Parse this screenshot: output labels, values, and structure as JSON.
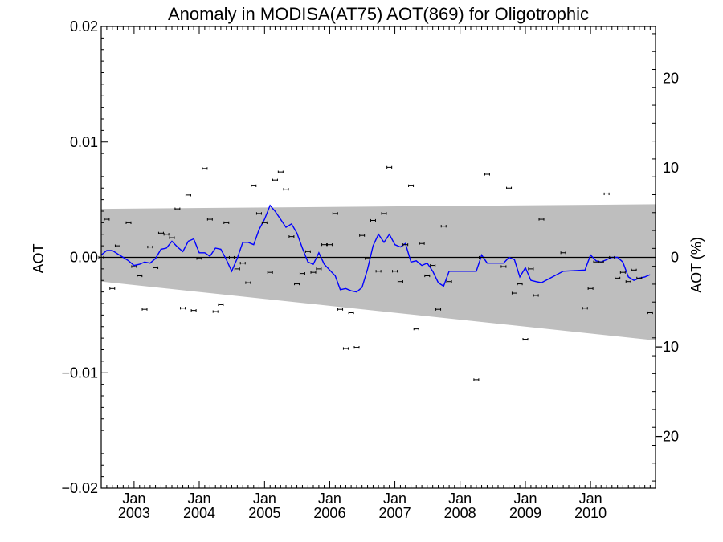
{
  "chart_data": {
    "type": "scatter",
    "title": "Anomaly in MODISA(AT75) AOT(869) for Oligotrophic",
    "ylabel": "AOT",
    "ylabel_right": "AOT (%)",
    "ylim": [
      -0.02,
      0.02
    ],
    "ylim_right_percent": [
      -25.8,
      25.8
    ],
    "xlim": [
      "2002-07-01",
      "2010-12-31"
    ],
    "grid": false,
    "y_ticks": [
      "0.02",
      "0.01",
      "0.00",
      "−0.01",
      "−0.02"
    ],
    "y_tick_values": [
      0.02,
      0.01,
      0.0,
      -0.01,
      -0.02
    ],
    "y_right_ticks": [
      "20",
      "10",
      "0",
      "−10",
      "−20"
    ],
    "y_right_tick_values": [
      20,
      10,
      0,
      -10,
      -20
    ],
    "x_ticks": [
      {
        "month": "Jan",
        "year": "2003",
        "date": "2003-01-01"
      },
      {
        "month": "Jan",
        "year": "2004",
        "date": "2004-01-01"
      },
      {
        "month": "Jan",
        "year": "2005",
        "date": "2005-01-01"
      },
      {
        "month": "Jan",
        "year": "2006",
        "date": "2006-01-01"
      },
      {
        "month": "Jan",
        "year": "2007",
        "date": "2007-01-01"
      },
      {
        "month": "Jan",
        "year": "2008",
        "date": "2008-01-01"
      },
      {
        "month": "Jan",
        "year": "2009",
        "date": "2009-01-01"
      },
      {
        "month": "Jan",
        "year": "2010",
        "date": "2010-01-01"
      }
    ],
    "band": {
      "color": "#bebebe",
      "upper": [
        [
          "2002-07-01",
          0.0042
        ],
        [
          "2010-12-31",
          0.0046
        ]
      ],
      "lower": [
        [
          "2002-07-01",
          -0.0021
        ],
        [
          "2010-12-31",
          -0.0072
        ]
      ]
    },
    "zero_line": 0,
    "points": [
      {
        "x": "2002-07-01",
        "y": 0.0
      },
      {
        "x": "2002-08-01",
        "y": 0.0033
      },
      {
        "x": "2002-09-01",
        "y": -0.0027
      },
      {
        "x": "2002-10-01",
        "y": 0.001
      },
      {
        "x": "2002-12-01",
        "y": 0.003
      },
      {
        "x": "2003-01-01",
        "y": -0.0008
      },
      {
        "x": "2003-02-01",
        "y": -0.0016
      },
      {
        "x": "2003-03-01",
        "y": -0.0045
      },
      {
        "x": "2003-04-01",
        "y": 0.0009
      },
      {
        "x": "2003-05-01",
        "y": -0.0009
      },
      {
        "x": "2003-06-01",
        "y": 0.0021
      },
      {
        "x": "2003-07-01",
        "y": 0.002
      },
      {
        "x": "2003-08-01",
        "y": 0.0017
      },
      {
        "x": "2003-09-01",
        "y": 0.0042
      },
      {
        "x": "2003-10-01",
        "y": -0.0044
      },
      {
        "x": "2003-11-01",
        "y": 0.0054
      },
      {
        "x": "2003-12-01",
        "y": -0.0046
      },
      {
        "x": "2004-01-01",
        "y": -0.0001
      },
      {
        "x": "2004-02-01",
        "y": 0.0077
      },
      {
        "x": "2004-03-01",
        "y": 0.0033
      },
      {
        "x": "2004-04-01",
        "y": -0.0047
      },
      {
        "x": "2004-05-01",
        "y": -0.0041
      },
      {
        "x": "2004-06-01",
        "y": 0.003
      },
      {
        "x": "2004-07-01",
        "y": 0.0
      },
      {
        "x": "2004-08-01",
        "y": -0.001
      },
      {
        "x": "2004-09-01",
        "y": -0.0005
      },
      {
        "x": "2004-10-01",
        "y": -0.0022
      },
      {
        "x": "2004-11-01",
        "y": 0.0062
      },
      {
        "x": "2004-12-01",
        "y": 0.0038
      },
      {
        "x": "2005-01-01",
        "y": 0.003
      },
      {
        "x": "2005-02-01",
        "y": -0.0013
      },
      {
        "x": "2005-03-01",
        "y": 0.0067
      },
      {
        "x": "2005-04-01",
        "y": 0.0074
      },
      {
        "x": "2005-05-01",
        "y": 0.0059
      },
      {
        "x": "2005-06-01",
        "y": 0.0018
      },
      {
        "x": "2005-07-01",
        "y": -0.0023
      },
      {
        "x": "2005-08-01",
        "y": -0.0014
      },
      {
        "x": "2005-09-01",
        "y": 0.0005
      },
      {
        "x": "2005-10-01",
        "y": -0.0013
      },
      {
        "x": "2005-11-01",
        "y": -0.001
      },
      {
        "x": "2005-12-01",
        "y": 0.0011
      },
      {
        "x": "2006-01-01",
        "y": 0.0011
      },
      {
        "x": "2006-02-01",
        "y": 0.0038
      },
      {
        "x": "2006-03-01",
        "y": -0.0045
      },
      {
        "x": "2006-04-01",
        "y": -0.0079
      },
      {
        "x": "2006-05-01",
        "y": -0.0048
      },
      {
        "x": "2006-06-01",
        "y": -0.0078
      },
      {
        "x": "2006-07-01",
        "y": 0.0019
      },
      {
        "x": "2006-08-01",
        "y": -0.0001
      },
      {
        "x": "2006-09-01",
        "y": 0.0032
      },
      {
        "x": "2006-10-01",
        "y": -0.0012
      },
      {
        "x": "2006-11-01",
        "y": 0.0038
      },
      {
        "x": "2006-12-01",
        "y": 0.0078
      },
      {
        "x": "2007-01-01",
        "y": -0.0012
      },
      {
        "x": "2007-02-01",
        "y": -0.0021
      },
      {
        "x": "2007-03-01",
        "y": 0.0011
      },
      {
        "x": "2007-04-01",
        "y": 0.0062
      },
      {
        "x": "2007-05-01",
        "y": -0.0062
      },
      {
        "x": "2007-06-01",
        "y": 0.0012
      },
      {
        "x": "2007-07-01",
        "y": -0.0016
      },
      {
        "x": "2007-08-01",
        "y": -0.0007
      },
      {
        "x": "2007-09-01",
        "y": -0.0045
      },
      {
        "x": "2007-10-01",
        "y": 0.0027
      },
      {
        "x": "2007-11-01",
        "y": -0.0021
      },
      {
        "x": "2008-04-01",
        "y": -0.0106
      },
      {
        "x": "2008-05-01",
        "y": 0.0
      },
      {
        "x": "2008-06-01",
        "y": 0.0072
      },
      {
        "x": "2008-09-01",
        "y": -0.0008
      },
      {
        "x": "2008-10-01",
        "y": 0.006
      },
      {
        "x": "2008-11-01",
        "y": -0.0031
      },
      {
        "x": "2008-12-01",
        "y": -0.0023
      },
      {
        "x": "2009-01-01",
        "y": -0.0071
      },
      {
        "x": "2009-02-01",
        "y": -0.001
      },
      {
        "x": "2009-03-01",
        "y": -0.0033
      },
      {
        "x": "2009-04-01",
        "y": 0.0033
      },
      {
        "x": "2009-08-01",
        "y": 0.0004
      },
      {
        "x": "2009-12-01",
        "y": -0.0044
      },
      {
        "x": "2010-01-01",
        "y": -0.0027
      },
      {
        "x": "2010-02-01",
        "y": -0.0004
      },
      {
        "x": "2010-03-01",
        "y": -0.0004
      },
      {
        "x": "2010-04-01",
        "y": 0.0055
      },
      {
        "x": "2010-05-01",
        "y": 0.0
      },
      {
        "x": "2010-06-01",
        "y": -0.0018
      },
      {
        "x": "2010-07-01",
        "y": -0.0013
      },
      {
        "x": "2010-08-01",
        "y": -0.0021
      },
      {
        "x": "2010-09-01",
        "y": -0.0011
      },
      {
        "x": "2010-10-01",
        "y": -0.0018
      },
      {
        "x": "2010-12-01",
        "y": -0.0048
      }
    ],
    "smoothed_line": {
      "color": "#0000ff",
      "points": [
        [
          "2002-07-01",
          0.0002
        ],
        [
          "2002-08-01",
          0.0006
        ],
        [
          "2002-09-01",
          0.0006
        ],
        [
          "2002-10-01",
          0.0003
        ],
        [
          "2002-11-01",
          0.0
        ],
        [
          "2002-12-01",
          -0.0003
        ],
        [
          "2003-01-01",
          -0.0007
        ],
        [
          "2003-02-01",
          -0.0006
        ],
        [
          "2003-03-01",
          -0.0004
        ],
        [
          "2003-04-01",
          -0.0005
        ],
        [
          "2003-05-01",
          -0.0001
        ],
        [
          "2003-06-01",
          0.0007
        ],
        [
          "2003-07-01",
          0.0008
        ],
        [
          "2003-08-01",
          0.0014
        ],
        [
          "2003-09-01",
          0.0009
        ],
        [
          "2003-10-01",
          0.0005
        ],
        [
          "2003-11-01",
          0.0014
        ],
        [
          "2003-12-01",
          0.0016
        ],
        [
          "2004-01-01",
          0.0004
        ],
        [
          "2004-02-01",
          0.0004
        ],
        [
          "2004-03-01",
          0.0001
        ],
        [
          "2004-04-01",
          0.0008
        ],
        [
          "2004-05-01",
          0.0007
        ],
        [
          "2004-06-01",
          -0.0002
        ],
        [
          "2004-07-01",
          -0.0012
        ],
        [
          "2004-08-01",
          -0.0001
        ],
        [
          "2004-09-01",
          0.0013
        ],
        [
          "2004-10-01",
          0.0013
        ],
        [
          "2004-11-01",
          0.0011
        ],
        [
          "2004-12-01",
          0.0024
        ],
        [
          "2005-01-01",
          0.0033
        ],
        [
          "2005-02-01",
          0.0045
        ],
        [
          "2005-03-01",
          0.004
        ],
        [
          "2005-04-01",
          0.0033
        ],
        [
          "2005-05-01",
          0.0026
        ],
        [
          "2005-06-01",
          0.0029
        ],
        [
          "2005-07-01",
          0.0021
        ],
        [
          "2005-08-01",
          0.0008
        ],
        [
          "2005-09-01",
          -0.0004
        ],
        [
          "2005-10-01",
          -0.0006
        ],
        [
          "2005-11-01",
          0.0004
        ],
        [
          "2005-12-01",
          -0.0006
        ],
        [
          "2006-01-01",
          -0.0011
        ],
        [
          "2006-02-01",
          -0.0016
        ],
        [
          "2006-03-01",
          -0.0028
        ],
        [
          "2006-04-01",
          -0.0027
        ],
        [
          "2006-05-01",
          -0.0029
        ],
        [
          "2006-06-01",
          -0.003
        ],
        [
          "2006-07-01",
          -0.0026
        ],
        [
          "2006-08-01",
          -0.001
        ],
        [
          "2006-09-01",
          0.001
        ],
        [
          "2006-10-01",
          0.002
        ],
        [
          "2006-11-01",
          0.0013
        ],
        [
          "2006-12-01",
          0.002
        ],
        [
          "2007-01-01",
          0.0011
        ],
        [
          "2007-02-01",
          0.0009
        ],
        [
          "2007-03-01",
          0.0012
        ],
        [
          "2007-04-01",
          -0.0004
        ],
        [
          "2007-05-01",
          -0.0003
        ],
        [
          "2007-06-01",
          -0.0007
        ],
        [
          "2007-07-01",
          -0.0005
        ],
        [
          "2007-08-01",
          -0.0012
        ],
        [
          "2007-09-01",
          -0.0022
        ],
        [
          "2007-10-01",
          -0.0025
        ],
        [
          "2007-11-01",
          -0.0012
        ],
        [
          "2008-04-01",
          -0.0012
        ],
        [
          "2008-05-01",
          0.0002
        ],
        [
          "2008-06-01",
          -0.0005
        ],
        [
          "2008-09-01",
          -0.0005
        ],
        [
          "2008-10-01",
          0.0
        ],
        [
          "2008-11-01",
          -0.0002
        ],
        [
          "2008-12-01",
          -0.0017
        ],
        [
          "2009-01-01",
          -0.0009
        ],
        [
          "2009-02-01",
          -0.002
        ],
        [
          "2009-03-01",
          -0.0021
        ],
        [
          "2009-04-01",
          -0.0022
        ],
        [
          "2009-08-01",
          -0.0012
        ],
        [
          "2009-12-01",
          -0.0011
        ],
        [
          "2010-01-01",
          0.0002
        ],
        [
          "2010-02-01",
          -0.0003
        ],
        [
          "2010-03-01",
          -0.0004
        ],
        [
          "2010-04-01",
          -0.0002
        ],
        [
          "2010-05-01",
          0.0
        ],
        [
          "2010-06-01",
          0.0
        ],
        [
          "2010-07-01",
          -0.0004
        ],
        [
          "2010-08-01",
          -0.0017
        ],
        [
          "2010-09-01",
          -0.002
        ],
        [
          "2010-10-01",
          -0.0018
        ],
        [
          "2010-11-01",
          -0.0017
        ],
        [
          "2010-12-01",
          -0.0015
        ]
      ]
    },
    "colors": {
      "points": "#000000",
      "axes": "#000000"
    }
  }
}
